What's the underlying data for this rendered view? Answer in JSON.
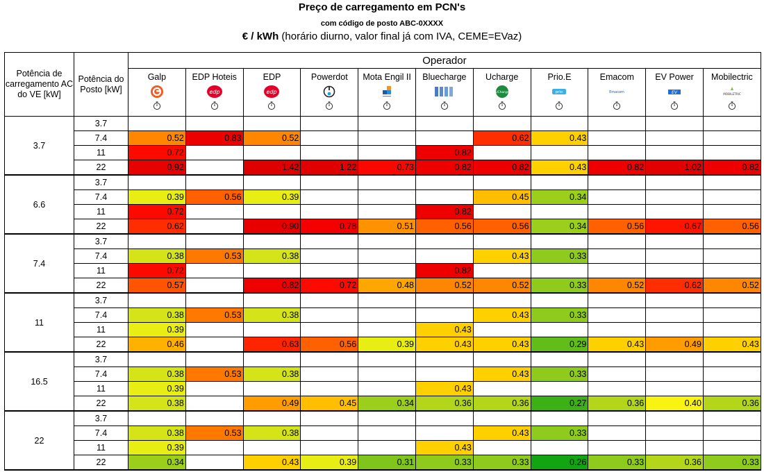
{
  "title": "Preço de carregamento em PCN's",
  "subtitle": "com código de posto ABC-0XXXX",
  "unit_bold": "€ / kWh",
  "unit_rest": " (horário diurno, valor final já com IVA, CEME=EVaz)",
  "header": {
    "col1": "Potência de carregamento AC do VE [kW]",
    "col2": "Potência do Posto [kW]",
    "operador": "Operador"
  },
  "operators": [
    {
      "name": "Galp",
      "logo": "galp-logo"
    },
    {
      "name": "EDP Hoteis",
      "logo": "edp-logo"
    },
    {
      "name": "EDP",
      "logo": "edp-logo"
    },
    {
      "name": "Powerdot",
      "logo": "powerdot-logo"
    },
    {
      "name": "Mota Engil II",
      "logo": "mota-engil-logo"
    },
    {
      "name": "Bluecharge",
      "logo": "bluecharge-logo"
    },
    {
      "name": "Ucharge",
      "logo": "ucharge-logo"
    },
    {
      "name": "Prio.E",
      "logo": "prio-logo"
    },
    {
      "name": "Emacom",
      "logo": "emacom-logo"
    },
    {
      "name": "EV Power",
      "logo": "evpower-logo"
    },
    {
      "name": "Mobilectric",
      "logo": "mobilectric-logo"
    }
  ],
  "logo_text": {
    "edp": "edp",
    "emacom": "Emacom",
    "evpower": "EV",
    "mobilectric": "MOBILETRIC",
    "ucharge": "UCharge",
    "prio": "prio"
  },
  "post_powers": [
    "3.7",
    "7.4",
    "11",
    "22"
  ],
  "groups": [
    {
      "ev": "3.7",
      "rows": [
        [
          null,
          null,
          null,
          null,
          null,
          null,
          null,
          null,
          null,
          null,
          null
        ],
        [
          "0.52",
          "0.83",
          "0.52",
          null,
          null,
          null,
          "0.62",
          "0.43",
          null,
          null,
          null
        ],
        [
          "0.72",
          null,
          null,
          null,
          null,
          "0.82",
          null,
          null,
          null,
          null,
          null
        ],
        [
          "0.92",
          null,
          "1.42",
          "1.22",
          "0.73",
          "0.82",
          "0.82",
          "0.43",
          "0.82",
          "1.02",
          "0.82"
        ]
      ]
    },
    {
      "ev": "6.6",
      "rows": [
        [
          null,
          null,
          null,
          null,
          null,
          null,
          null,
          null,
          null,
          null,
          null
        ],
        [
          "0.39",
          "0.56",
          "0.39",
          null,
          null,
          null,
          "0.45",
          "0.34",
          null,
          null,
          null
        ],
        [
          "0.72",
          null,
          null,
          null,
          null,
          "0.82",
          null,
          null,
          null,
          null,
          null
        ],
        [
          "0.62",
          null,
          "0.90",
          "0.78",
          "0.51",
          "0.56",
          "0.56",
          "0.34",
          "0.56",
          "0.67",
          "0.56"
        ]
      ]
    },
    {
      "ev": "7.4",
      "rows": [
        [
          null,
          null,
          null,
          null,
          null,
          null,
          null,
          null,
          null,
          null,
          null
        ],
        [
          "0.38",
          "0.53",
          "0.38",
          null,
          null,
          null,
          "0.43",
          "0.33",
          null,
          null,
          null
        ],
        [
          "0.72",
          null,
          null,
          null,
          null,
          "0.82",
          null,
          null,
          null,
          null,
          null
        ],
        [
          "0.57",
          null,
          "0.82",
          "0.72",
          "0.48",
          "0.52",
          "0.52",
          "0.33",
          "0.52",
          "0.62",
          "0.52"
        ]
      ]
    },
    {
      "ev": "11",
      "rows": [
        [
          null,
          null,
          null,
          null,
          null,
          null,
          null,
          null,
          null,
          null,
          null
        ],
        [
          "0.38",
          "0.53",
          "0.38",
          null,
          null,
          null,
          "0.43",
          "0.33",
          null,
          null,
          null
        ],
        [
          "0.39",
          null,
          null,
          null,
          null,
          "0.43",
          null,
          null,
          null,
          null,
          null
        ],
        [
          "0.46",
          null,
          "0.63",
          "0.56",
          "0.39",
          "0.43",
          "0.43",
          "0.29",
          "0.43",
          "0.49",
          "0.43"
        ]
      ]
    },
    {
      "ev": "16.5",
      "rows": [
        [
          null,
          null,
          null,
          null,
          null,
          null,
          null,
          null,
          null,
          null,
          null
        ],
        [
          "0.38",
          "0.53",
          "0.38",
          null,
          null,
          null,
          "0.43",
          "0.33",
          null,
          null,
          null
        ],
        [
          "0.39",
          null,
          null,
          null,
          null,
          "0.43",
          null,
          null,
          null,
          null,
          null
        ],
        [
          "0.38",
          null,
          "0.49",
          "0.45",
          "0.34",
          "0.36",
          "0.36",
          "0.27",
          "0.36",
          "0.40",
          "0.36"
        ]
      ]
    },
    {
      "ev": "22",
      "rows": [
        [
          null,
          null,
          null,
          null,
          null,
          null,
          null,
          null,
          null,
          null,
          null
        ],
        [
          "0.38",
          "0.53",
          "0.38",
          null,
          null,
          null,
          "0.43",
          "0.33",
          null,
          null,
          null
        ],
        [
          "0.39",
          null,
          null,
          null,
          null,
          "0.43",
          null,
          null,
          null,
          null,
          null
        ],
        [
          "0.34",
          null,
          "0.43",
          "0.39",
          "0.31",
          "0.33",
          "0.33",
          "0.26",
          "0.33",
          "0.36",
          "0.33"
        ]
      ]
    }
  ],
  "colors": {
    "scale": [
      {
        "v": 0.26,
        "c": "#12a512"
      },
      {
        "v": 0.27,
        "c": "#3bb116"
      },
      {
        "v": 0.29,
        "c": "#62bc19"
      },
      {
        "v": 0.31,
        "c": "#7fc51b"
      },
      {
        "v": 0.33,
        "c": "#8fcb1c"
      },
      {
        "v": 0.34,
        "c": "#9cce1c"
      },
      {
        "v": 0.36,
        "c": "#b3d61a"
      },
      {
        "v": 0.38,
        "c": "#d4e418"
      },
      {
        "v": 0.39,
        "c": "#e8ee14"
      },
      {
        "v": 0.4,
        "c": "#f8f310"
      },
      {
        "v": 0.43,
        "c": "#ffd000"
      },
      {
        "v": 0.45,
        "c": "#ffbe00"
      },
      {
        "v": 0.46,
        "c": "#ffb100"
      },
      {
        "v": 0.48,
        "c": "#ffa600"
      },
      {
        "v": 0.49,
        "c": "#ff9d00"
      },
      {
        "v": 0.51,
        "c": "#ff9200"
      },
      {
        "v": 0.52,
        "c": "#ff8600"
      },
      {
        "v": 0.53,
        "c": "#ff7900"
      },
      {
        "v": 0.56,
        "c": "#ff6000"
      },
      {
        "v": 0.57,
        "c": "#ff5500"
      },
      {
        "v": 0.62,
        "c": "#ff2e00"
      },
      {
        "v": 0.63,
        "c": "#ff2500"
      },
      {
        "v": 0.67,
        "c": "#ff1400"
      },
      {
        "v": 0.72,
        "c": "#fc0a00"
      },
      {
        "v": 0.73,
        "c": "#fa0800"
      },
      {
        "v": 0.78,
        "c": "#f40000"
      },
      {
        "v": 0.82,
        "c": "#ee0000"
      },
      {
        "v": 0.83,
        "c": "#ec0000"
      },
      {
        "v": 0.9,
        "c": "#e80000"
      },
      {
        "v": 0.92,
        "c": "#e60000"
      },
      {
        "v": 1.02,
        "c": "#e20000"
      },
      {
        "v": 1.22,
        "c": "#e00000"
      },
      {
        "v": 1.42,
        "c": "#de0000"
      }
    ]
  }
}
